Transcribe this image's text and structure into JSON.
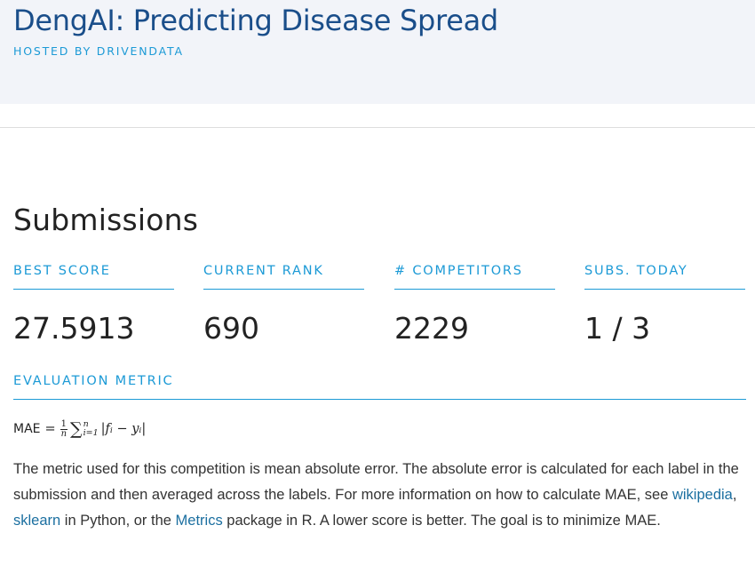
{
  "header": {
    "title": "DengAI: Predicting Disease Spread",
    "host": "HOSTED BY DRIVENDATA"
  },
  "submissions": {
    "title": "Submissions",
    "stats": [
      {
        "label": "BEST SCORE",
        "value": "27.5913"
      },
      {
        "label": "CURRENT RANK",
        "value": "690"
      },
      {
        "label": "# COMPETITORS",
        "value": "2229"
      },
      {
        "label": "SUBS. TODAY",
        "value": "1 / 3"
      }
    ]
  },
  "metric": {
    "label": "EVALUATION METRIC",
    "formula": {
      "lhs": "MAE",
      "eq": "=",
      "frac_num": "1",
      "frac_den": "n",
      "sum": "∑",
      "sum_upper": "n",
      "sum_lower": "i=1",
      "body": "|fᵢ − yᵢ|"
    },
    "description": {
      "text1": "The metric used for this competition is mean absolute error. The absolute error is calculated for each label in the submission and then averaged across the labels. For more information on how to calculate MAE, see ",
      "link_wikipedia": "wikipedia",
      "sep1": ", ",
      "link_sklearn": "sklearn",
      "text2": " in Python, or the ",
      "link_metrics": "Metrics",
      "text3": " package in R. A lower score is better. The goal is to minimize MAE."
    }
  }
}
